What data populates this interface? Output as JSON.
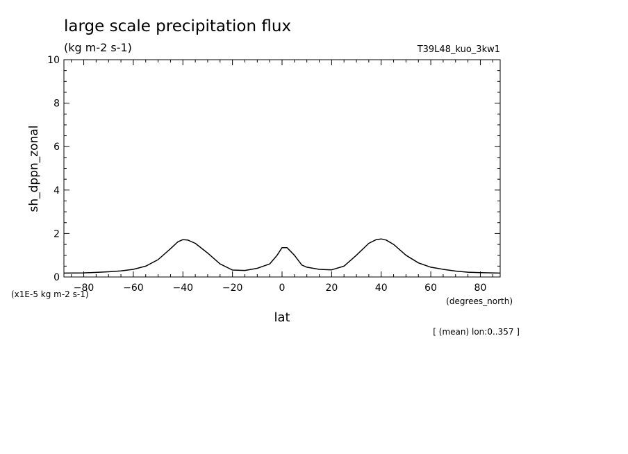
{
  "chart_data": {
    "type": "line",
    "title": "large scale precipitation flux",
    "subtitle": "(kg m-2 s-1)",
    "run_id": "T39L48_kuo_3kw1",
    "xlabel": "lat",
    "x_units": "(degrees_north)",
    "ylabel": "sh_dppn_zonal",
    "y_scale_note": "(x1E-5 kg m-2 s-1)",
    "footnote": "[ (mean) lon:0..357 ]",
    "xlim": [
      -88,
      88
    ],
    "ylim": [
      0,
      10
    ],
    "x_ticks": [
      -80,
      -60,
      -40,
      -20,
      0,
      20,
      40,
      60,
      80
    ],
    "y_ticks": [
      0,
      2,
      4,
      6,
      8,
      10
    ],
    "grid": false,
    "series": [
      {
        "x": [
          -88,
          -80,
          -75,
          -70,
          -65,
          -60,
          -55,
          -50,
          -45,
          -42,
          -40,
          -38,
          -35,
          -30,
          -25,
          -20,
          -15,
          -10,
          -5,
          -2,
          0,
          2,
          5,
          8,
          10,
          15,
          20,
          25,
          30,
          35,
          38,
          40,
          42,
          45,
          50,
          55,
          60,
          65,
          70,
          75,
          80,
          88
        ],
        "y": [
          0.18,
          0.19,
          0.21,
          0.24,
          0.28,
          0.35,
          0.5,
          0.8,
          1.3,
          1.62,
          1.72,
          1.7,
          1.55,
          1.1,
          0.6,
          0.32,
          0.3,
          0.4,
          0.6,
          1.0,
          1.35,
          1.35,
          1.0,
          0.55,
          0.45,
          0.35,
          0.33,
          0.5,
          1.0,
          1.55,
          1.72,
          1.75,
          1.7,
          1.5,
          1.0,
          0.65,
          0.45,
          0.35,
          0.27,
          0.22,
          0.2,
          0.18
        ]
      }
    ]
  }
}
